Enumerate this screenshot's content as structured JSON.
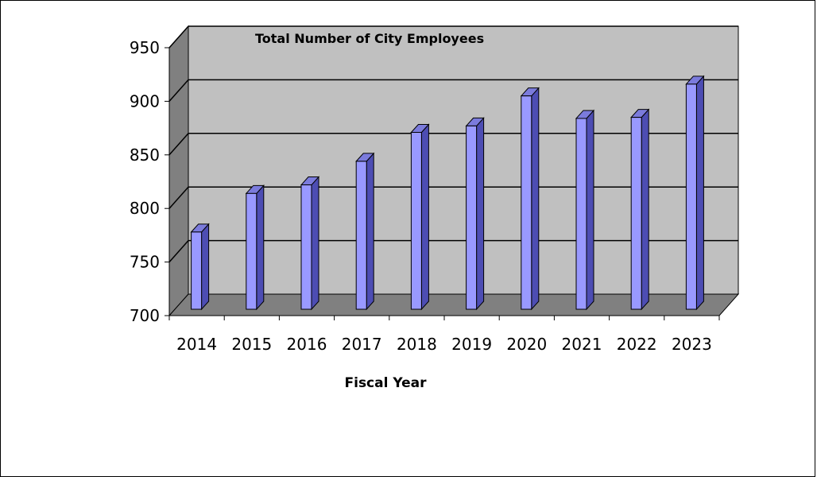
{
  "chart_data": {
    "type": "bar",
    "title": "Total Number of City Employees",
    "xlabel": "Fiscal Year",
    "ylabel": "",
    "categories": [
      "2014",
      "2015",
      "2016",
      "2017",
      "2018",
      "2019",
      "2020",
      "2021",
      "2022",
      "2023"
    ],
    "values": [
      778,
      814,
      822,
      844,
      871,
      877,
      905,
      884,
      885,
      916
    ],
    "ylim": [
      700,
      950
    ],
    "yticks": [
      700,
      750,
      800,
      850,
      900,
      950
    ],
    "grid": true,
    "legend": "none",
    "colors": {
      "bar_front": "#9999ff",
      "bar_side": "#4d4db3",
      "bar_top": "#7b7bdc",
      "back_wall": "#c0c0c0",
      "side_wall": "#808080",
      "floor": "#808080"
    }
  }
}
